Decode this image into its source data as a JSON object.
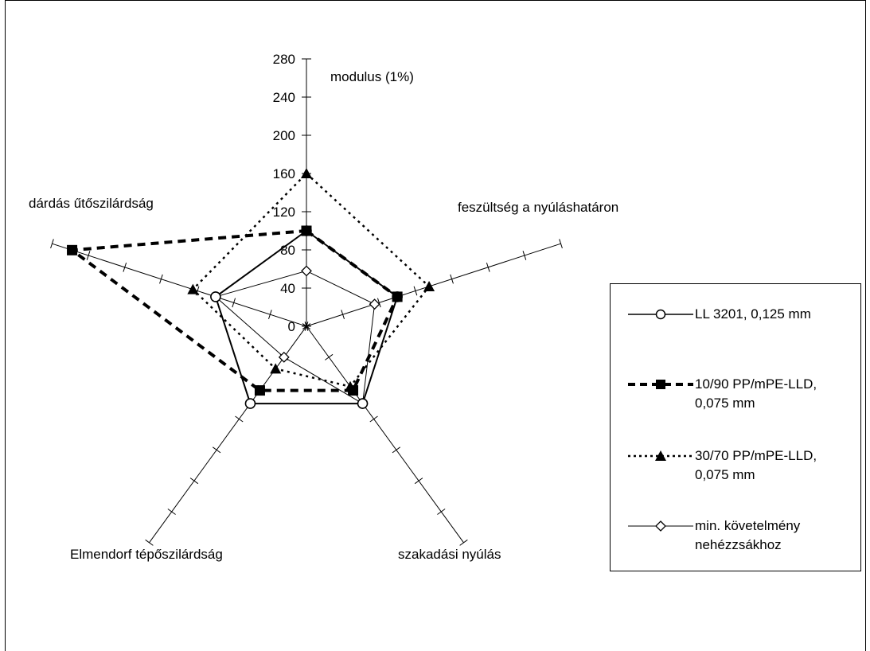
{
  "chart_data": {
    "type": "radar",
    "title": "",
    "axes": [
      "modulus (1%)",
      "feszültség a nyúláshatáron",
      "szakadási  nyúlás",
      "Elmendorf tépőszilárdság",
      "dárdás űtőszilárdság"
    ],
    "radial_ticks": [
      "0",
      "40",
      "80",
      "120",
      "160",
      "200",
      "240",
      "280"
    ],
    "rlim": [
      0,
      280
    ],
    "rstep": 40,
    "legend_position": "right",
    "series": [
      {
        "name": "LL 3201, 0,125 mm",
        "values": [
          100,
          100,
          100,
          100,
          100
        ],
        "line": "solid",
        "marker": "circle-open",
        "color": "#000000"
      },
      {
        "name": "10/90 PP/mPE-LLD,\n0,075 mm",
        "values": [
          100,
          100,
          83,
          83,
          258
        ],
        "line": "dashed-bold",
        "marker": "square-filled",
        "color": "#000000"
      },
      {
        "name": "30/70 PP/mPE-LLD,\n0,075 mm",
        "values": [
          160,
          135,
          78,
          55,
          125
        ],
        "line": "dotted",
        "marker": "triangle-filled",
        "color": "#000000"
      },
      {
        "name": "min. követelmény\nnehézzsákhoz",
        "values": [
          58,
          75,
          100,
          40,
          100
        ],
        "line": "thin",
        "marker": "diamond-open",
        "color": "#000000"
      }
    ]
  }
}
